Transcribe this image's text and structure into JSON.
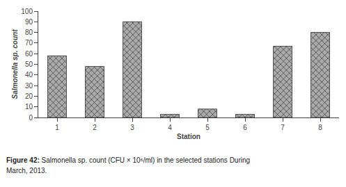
{
  "chart_data": {
    "type": "bar",
    "categories": [
      "1",
      "2",
      "3",
      "4",
      "5",
      "6",
      "7",
      "8"
    ],
    "values": [
      58,
      48,
      90,
      3,
      8,
      3,
      67,
      80
    ],
    "color": "#aaaaaa",
    "xlabel": "Station",
    "ylabel": "Salmonella sp. count",
    "ylim": [
      0,
      100
    ],
    "yticks": [
      0,
      10,
      20,
      30,
      40,
      50,
      60,
      70,
      80,
      90,
      100
    ],
    "grid": false,
    "annotations": [
      "Figure 42: Salmonella sp. count (CFU × 10⁶/ml) in the selected stations During",
      "March, 2013."
    ]
  }
}
